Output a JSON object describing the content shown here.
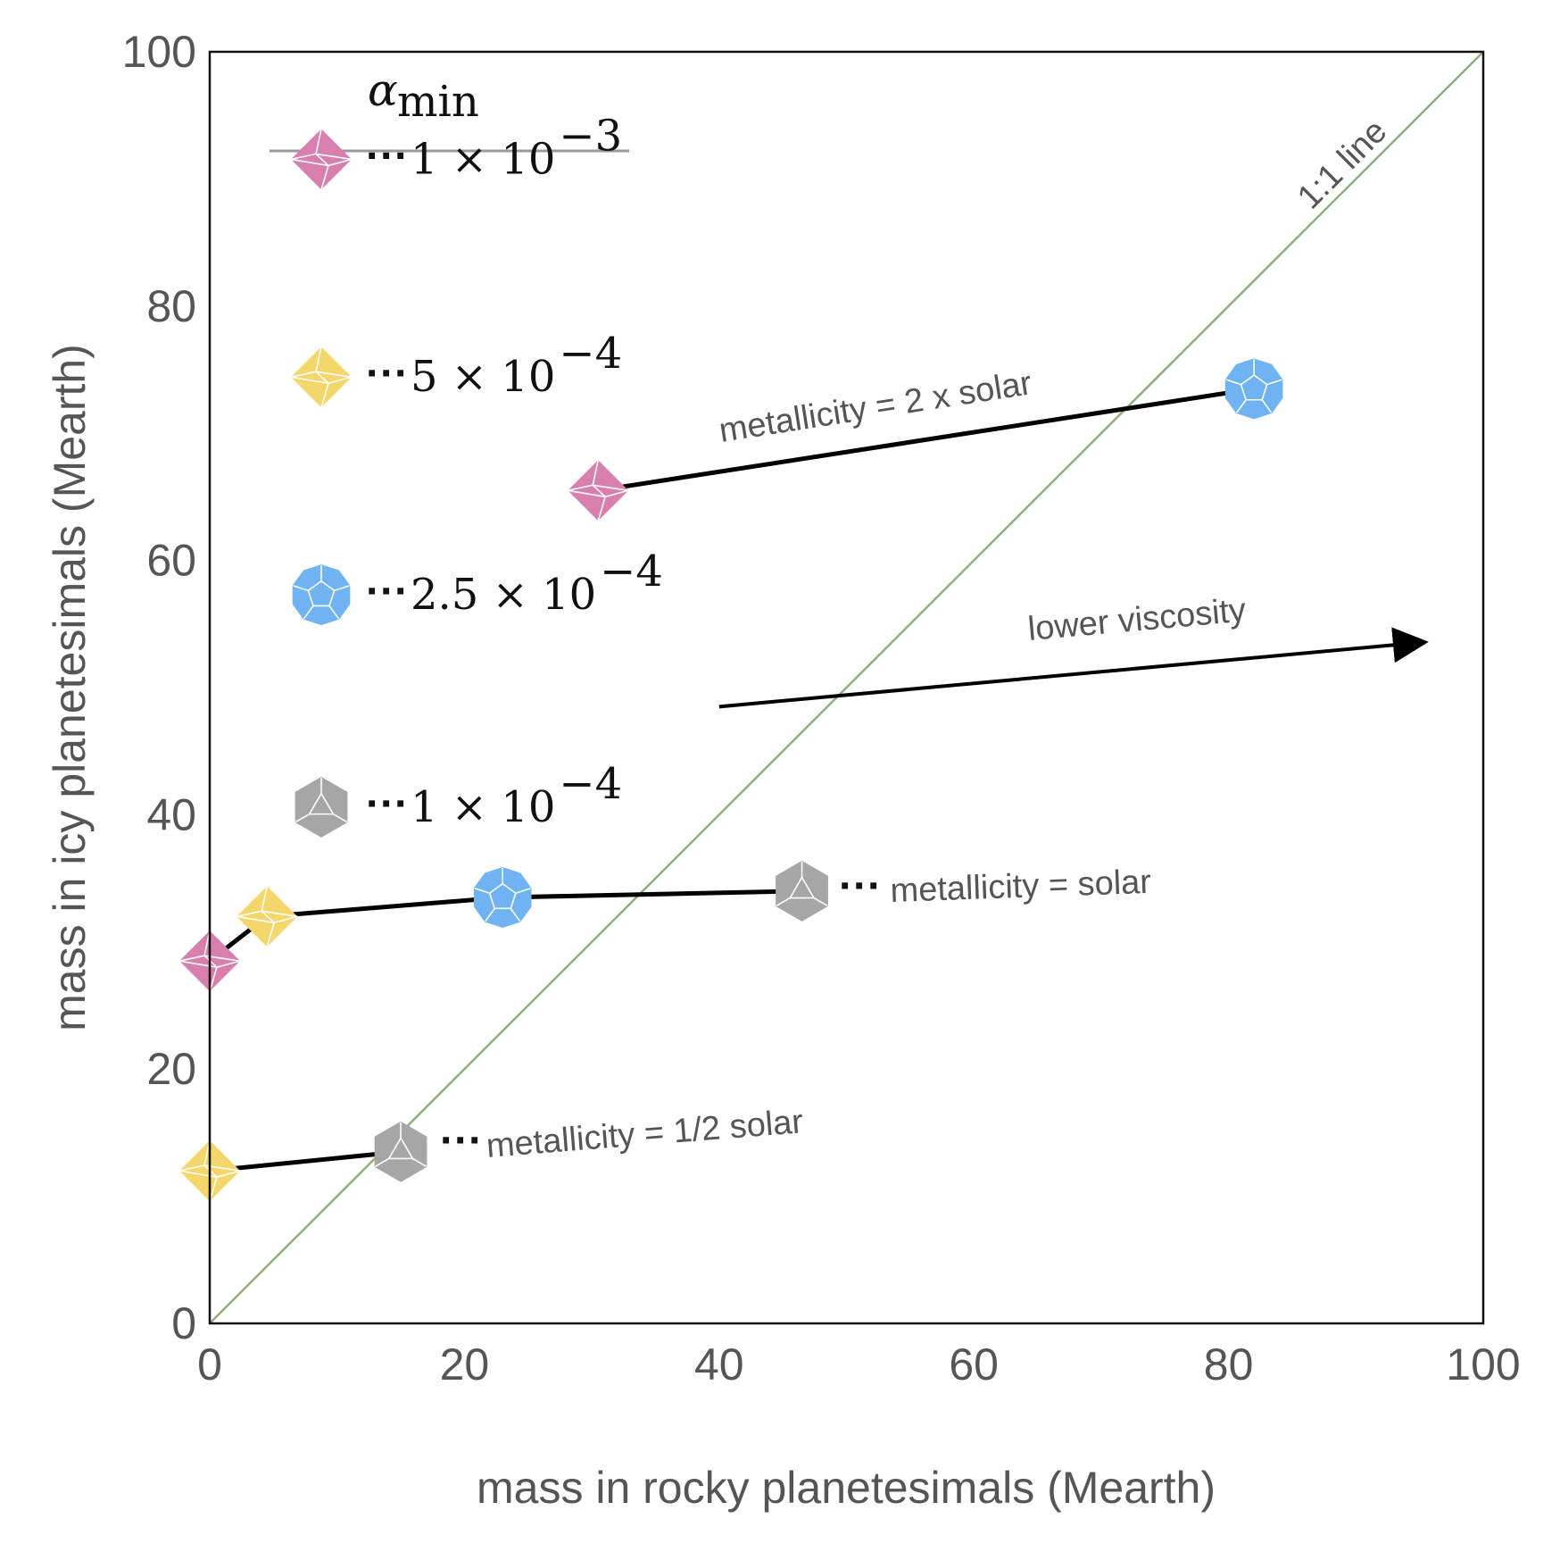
{
  "chart_data": {
    "type": "scatter",
    "title": "",
    "xlabel": "mass in rocky planetesimals (Mearth)",
    "ylabel": "mass in icy planetesimals (Mearth)",
    "xlim": [
      0,
      100
    ],
    "ylim": [
      0,
      100
    ],
    "x_ticks": [
      "0",
      "20",
      "40",
      "60",
      "80",
      "100"
    ],
    "y_ticks": [
      "0",
      "20",
      "40",
      "60",
      "80",
      "100"
    ],
    "grid": false,
    "legend": {
      "title": "α",
      "title_subscript": "min",
      "position": "top-left",
      "entries": [
        {
          "alpha_min": "1 × 10",
          "exponent": "−3",
          "color": "#d97fae",
          "marker": "octahedron"
        },
        {
          "alpha_min": "5 × 10",
          "exponent": "−4",
          "color": "#f5d66a",
          "marker": "octahedron"
        },
        {
          "alpha_min": "2.5 × 10",
          "exponent": "−4",
          "color": "#6fb3f2",
          "marker": "dodecahedron"
        },
        {
          "alpha_min": "1 × 10",
          "exponent": "−4",
          "color": "#a6a6a6",
          "marker": "icosahedron"
        }
      ]
    },
    "reference_line": {
      "label": "1:1 line",
      "color": "#8fb07a",
      "from": [
        0,
        0
      ],
      "to": [
        100,
        100
      ]
    },
    "series": [
      {
        "name": "metallicity = 2 x solar",
        "points": [
          {
            "x": 30.5,
            "y": 65.5,
            "alpha_min": "1e-3"
          },
          {
            "x": 82,
            "y": 73.5,
            "alpha_min": "2.5e-4"
          }
        ]
      },
      {
        "name": "metallicity = solar",
        "points": [
          {
            "x": 0,
            "y": 28.5,
            "alpha_min": "1e-3"
          },
          {
            "x": 4.5,
            "y": 32,
            "alpha_min": "5e-4"
          },
          {
            "x": 23,
            "y": 33.5,
            "alpha_min": "2.5e-4"
          },
          {
            "x": 46.5,
            "y": 34,
            "alpha_min": "1e-4"
          }
        ]
      },
      {
        "name": "metallicity = 1/2 solar",
        "points": [
          {
            "x": 0,
            "y": 12,
            "alpha_min": "5e-4"
          },
          {
            "x": 15,
            "y": 13.5,
            "alpha_min": "1e-4"
          }
        ]
      }
    ],
    "annotations": [
      {
        "text": "lower viscosity",
        "arrow_from": [
          40,
          48.5
        ],
        "arrow_to": [
          96,
          53.5
        ]
      },
      {
        "text": "metallicity = 2 x solar"
      },
      {
        "text": "metallicity = solar"
      },
      {
        "text": "metallicity = 1/2 solar"
      }
    ]
  }
}
